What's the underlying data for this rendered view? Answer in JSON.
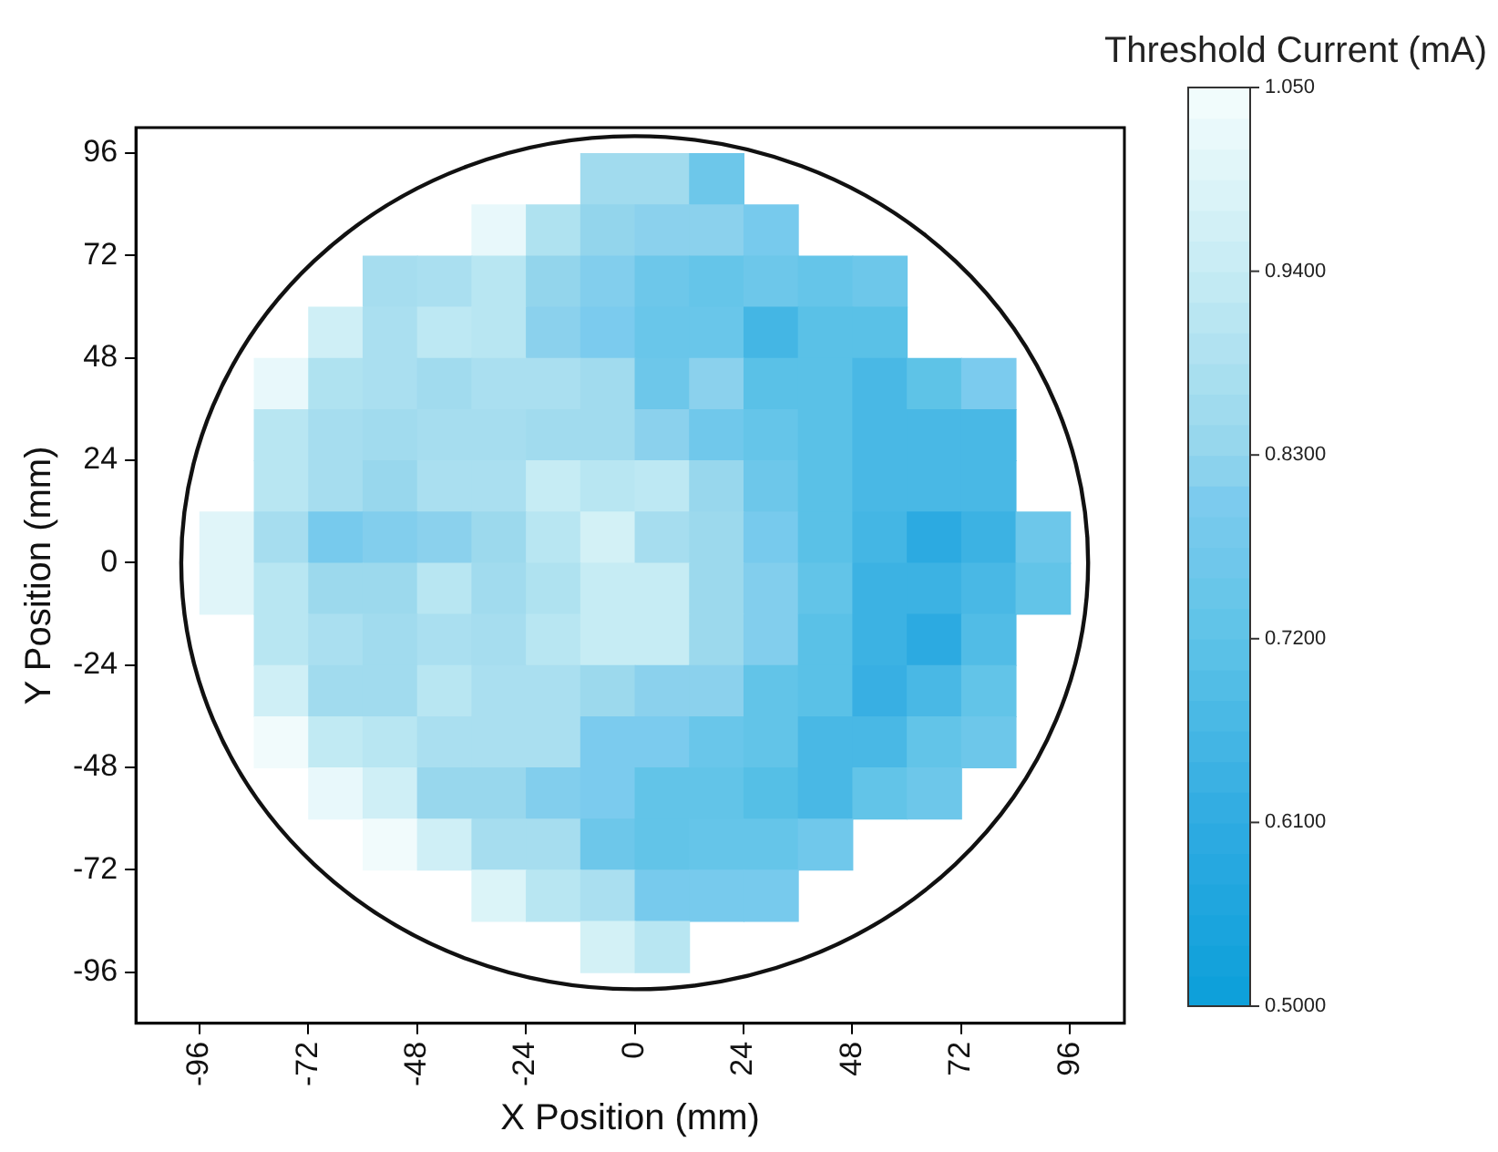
{
  "chart_data": {
    "type": "heatmap",
    "xlabel": "X Position (mm)",
    "ylabel": "Y Position (mm)",
    "clabel": "Threshold Current (mA)",
    "x": [
      -90,
      -78,
      -66,
      -54,
      -42,
      -30,
      -18,
      -6,
      6,
      18,
      30,
      42,
      54,
      66,
      78,
      90
    ],
    "y": [
      90,
      78,
      66,
      54,
      42,
      30,
      18,
      6,
      -6,
      -18,
      -30,
      -42,
      -54,
      -66,
      -78,
      -90
    ],
    "xlim": [
      -110,
      108
    ],
    "ylim": [
      -108,
      102
    ],
    "xticks": [
      -96,
      -72,
      -48,
      -24,
      0,
      24,
      48,
      72,
      96
    ],
    "yticks": [
      -96,
      -72,
      -48,
      -24,
      0,
      24,
      48,
      72,
      96
    ],
    "clim": [
      0.5,
      1.05
    ],
    "cticks": [
      {
        "value": 0.5,
        "label": "0.5000"
      },
      {
        "value": 0.61,
        "label": "0.6100"
      },
      {
        "value": 0.72,
        "label": "0.7200"
      },
      {
        "value": 0.83,
        "label": "0.8300"
      },
      {
        "value": 0.94,
        "label": "0.9400"
      },
      {
        "value": 1.05,
        "label": "1.050"
      }
    ],
    "grid": false,
    "cells": [
      [
        null,
        null,
        null,
        null,
        null,
        null,
        null,
        0.86,
        0.86,
        0.76,
        null,
        null,
        null,
        null,
        null,
        null
      ],
      [
        null,
        null,
        null,
        null,
        null,
        1.02,
        0.89,
        0.83,
        0.82,
        0.82,
        0.79,
        null,
        null,
        null,
        null,
        null
      ],
      [
        null,
        null,
        null,
        0.87,
        0.88,
        0.91,
        0.83,
        0.81,
        0.76,
        0.74,
        0.76,
        0.74,
        0.76,
        null,
        null,
        null
      ],
      [
        null,
        null,
        0.96,
        0.88,
        0.92,
        0.91,
        0.82,
        0.8,
        0.75,
        0.75,
        0.66,
        0.71,
        0.71,
        null,
        null,
        null
      ],
      [
        null,
        1.02,
        0.89,
        0.88,
        0.86,
        0.88,
        0.88,
        0.86,
        0.76,
        0.82,
        0.71,
        0.71,
        0.67,
        0.72,
        0.8,
        null
      ],
      [
        null,
        0.91,
        0.87,
        0.86,
        0.87,
        0.87,
        0.86,
        0.86,
        0.82,
        0.77,
        0.74,
        0.71,
        0.67,
        0.67,
        0.67,
        null
      ],
      [
        null,
        0.91,
        0.87,
        0.84,
        0.88,
        0.88,
        0.94,
        0.91,
        0.92,
        0.84,
        0.76,
        0.71,
        0.67,
        0.67,
        0.67,
        null
      ],
      [
        1.0,
        0.87,
        0.79,
        0.81,
        0.82,
        0.85,
        0.91,
        0.97,
        0.87,
        0.85,
        0.79,
        0.71,
        0.66,
        0.6,
        0.64,
        0.76
      ],
      [
        1.0,
        0.91,
        0.85,
        0.85,
        0.91,
        0.86,
        0.89,
        0.94,
        0.94,
        0.85,
        0.81,
        0.73,
        0.64,
        0.64,
        0.67,
        0.73
      ],
      [
        null,
        0.91,
        0.88,
        0.86,
        0.88,
        0.87,
        0.91,
        0.94,
        0.94,
        0.85,
        0.81,
        0.71,
        0.64,
        0.6,
        0.69,
        null
      ],
      [
        null,
        0.96,
        0.86,
        0.86,
        0.91,
        0.88,
        0.88,
        0.85,
        0.82,
        0.82,
        0.73,
        0.71,
        0.63,
        0.67,
        0.73,
        null
      ],
      [
        null,
        1.04,
        0.93,
        0.91,
        0.88,
        0.88,
        0.88,
        0.8,
        0.8,
        0.75,
        0.73,
        0.67,
        0.67,
        0.73,
        0.76,
        null
      ],
      [
        null,
        null,
        1.02,
        0.96,
        0.84,
        0.84,
        0.81,
        0.8,
        0.73,
        0.73,
        0.7,
        0.67,
        0.73,
        0.76,
        null,
        null
      ],
      [
        null,
        null,
        null,
        1.04,
        0.96,
        0.87,
        0.87,
        0.76,
        0.73,
        0.74,
        0.74,
        0.77,
        null,
        null,
        null,
        null
      ],
      [
        null,
        null,
        null,
        null,
        null,
        0.99,
        0.91,
        0.88,
        0.79,
        0.79,
        0.79,
        null,
        null,
        null,
        null,
        null
      ],
      [
        null,
        null,
        null,
        null,
        null,
        null,
        null,
        0.97,
        0.91,
        null,
        null,
        null,
        null,
        null,
        null,
        null
      ]
    ]
  }
}
